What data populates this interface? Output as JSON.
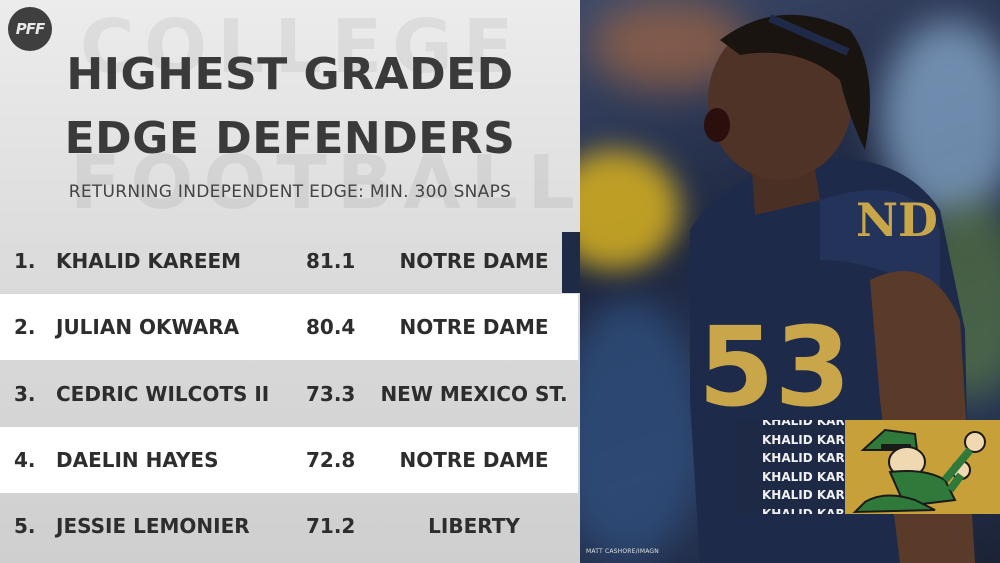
{
  "brand": {
    "logo_text": "PFF"
  },
  "background_words": [
    "COLLEGE",
    "FOOTBALL"
  ],
  "header": {
    "title_line1": "HIGHEST GRADED",
    "title_line2": "EDGE DEFENDERS",
    "subtitle": "RETURNING INDEPENDENT EDGE: MIN. 300 SNAPS"
  },
  "rankings": [
    {
      "rank": "1.",
      "name": "KHALID KAREEM",
      "grade": "81.1",
      "school": "NOTRE DAME"
    },
    {
      "rank": "2.",
      "name": "JULIAN OKWARA",
      "grade": "80.4",
      "school": "NOTRE DAME"
    },
    {
      "rank": "3.",
      "name": "CEDRIC WILCOTS II",
      "grade": "73.3",
      "school": "NEW MEXICO ST."
    },
    {
      "rank": "4.",
      "name": "DAELIN HAYES",
      "grade": "72.8",
      "school": "NOTRE DAME"
    },
    {
      "rank": "5.",
      "name": "JESSIE LEMONIER",
      "grade": "71.2",
      "school": "LIBERTY"
    }
  ],
  "player_tag": {
    "lines": [
      "KHALID KAREEM",
      "KHALID KAREEM",
      "KHALID KAREEM",
      "KHALID KAREEM",
      "KHALID KAREEM",
      "KHALID KAREEM"
    ]
  },
  "photo": {
    "jersey_number": "53",
    "credit": "MATT CASHORE/IMAGN"
  },
  "colors": {
    "navy": "#1e2b46",
    "gold": "#c8a03a",
    "leprechaun_green": "#2f7a3a",
    "text_dark": "#2d2d2d"
  }
}
